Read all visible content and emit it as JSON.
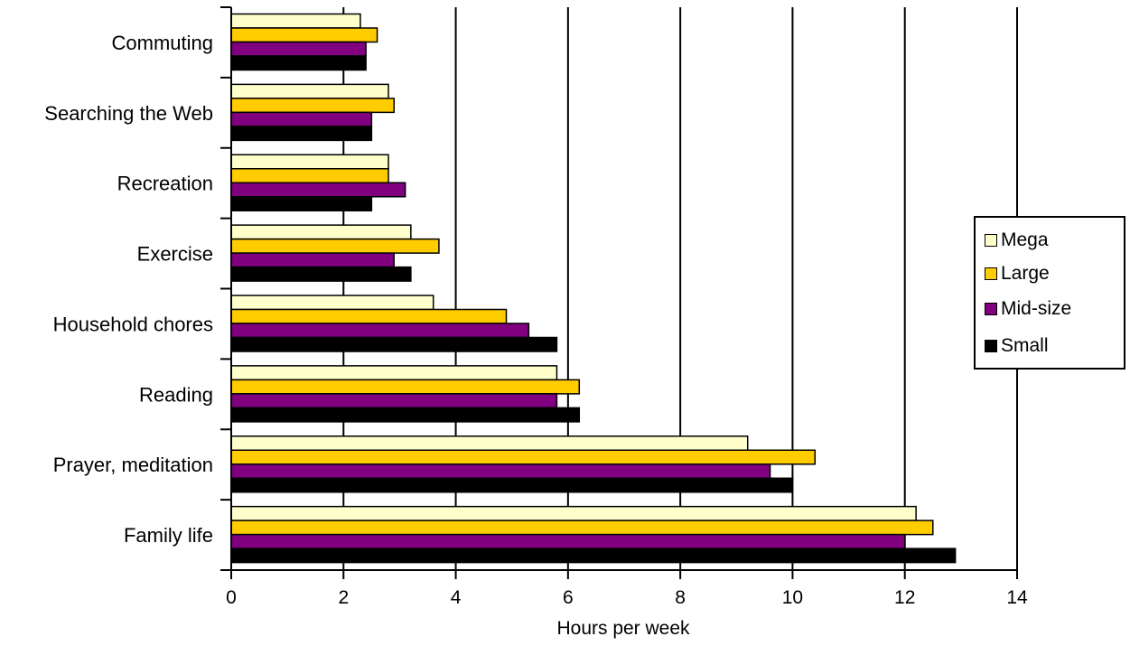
{
  "chart_data": {
    "type": "bar",
    "orientation": "horizontal",
    "categories": [
      "Commuting",
      "Searching the Web",
      "Recreation",
      "Exercise",
      "Household chores",
      "Reading",
      "Prayer, meditation",
      "Family life"
    ],
    "series": [
      {
        "name": "Mega",
        "color": "#ffffcc",
        "values": [
          2.3,
          2.8,
          2.8,
          3.2,
          3.6,
          5.8,
          9.2,
          12.2
        ]
      },
      {
        "name": "Large",
        "color": "#ffcc00",
        "values": [
          2.6,
          2.9,
          2.8,
          3.7,
          4.9,
          6.2,
          10.4,
          12.5
        ]
      },
      {
        "name": "Mid-size",
        "color": "#800080",
        "values": [
          2.4,
          2.5,
          3.1,
          2.9,
          5.3,
          5.8,
          9.6,
          12.0
        ]
      },
      {
        "name": "Small",
        "color": "#000000",
        "values": [
          2.4,
          2.5,
          2.5,
          3.2,
          5.8,
          6.2,
          10.0,
          12.9
        ]
      }
    ],
    "xlabel": "Hours per week",
    "ylabel": "",
    "xlim": [
      0,
      14
    ],
    "xticks": [
      "0",
      "2",
      "4",
      "6",
      "8",
      "10",
      "12",
      "14"
    ],
    "grid": "vertical major gridlines",
    "legend_position": "right"
  }
}
